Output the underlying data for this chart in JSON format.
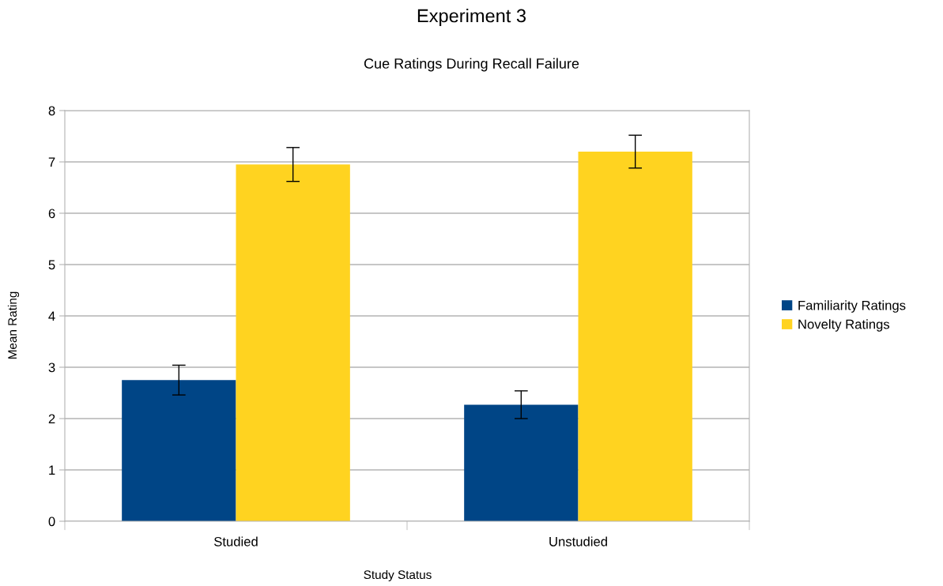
{
  "chart_data": {
    "type": "bar",
    "title": "Experiment 3",
    "subtitle": "Cue Ratings During Recall Failure",
    "xlabel": "Study Status",
    "ylabel": "Mean Rating",
    "categories": [
      "Studied",
      "Unstudied"
    ],
    "series": [
      {
        "name": "Familiarity Ratings",
        "color": "#004586",
        "values": [
          2.75,
          2.27
        ],
        "errors": [
          0.29,
          0.27
        ]
      },
      {
        "name": "Novelty Ratings",
        "color": "#ffd320",
        "values": [
          6.95,
          7.2
        ],
        "errors": [
          0.33,
          0.32
        ]
      }
    ],
    "ylim": [
      0,
      8
    ],
    "yticks": [
      0,
      1,
      2,
      3,
      4,
      5,
      6,
      7,
      8
    ],
    "grid": "y",
    "legend": "right"
  }
}
